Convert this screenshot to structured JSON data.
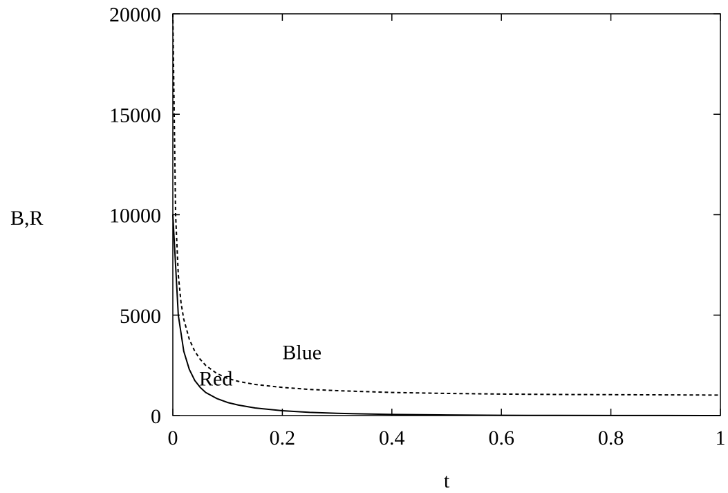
{
  "chart_data": {
    "type": "line",
    "title": "",
    "xlabel": "t",
    "ylabel": "B,R",
    "xlim": [
      0,
      1
    ],
    "ylim": [
      0,
      20000
    ],
    "xticks": [
      "0",
      "0.2",
      "0.4",
      "0.6",
      "0.8",
      "1"
    ],
    "yticks": [
      "0",
      "5000",
      "10000",
      "15000",
      "20000"
    ],
    "grid": false,
    "legend": "none",
    "series": [
      {
        "name": "Blue",
        "style": "dashed",
        "color": "#000000",
        "x": [
          0,
          0.005,
          0.01,
          0.015,
          0.02,
          0.03,
          0.04,
          0.05,
          0.06,
          0.08,
          0.1,
          0.12,
          0.15,
          0.2,
          0.25,
          0.3,
          0.4,
          0.5,
          0.6,
          0.7,
          0.8,
          0.9,
          1.0
        ],
        "values": [
          20000,
          10000,
          7000,
          5600,
          4800,
          3800,
          3200,
          2800,
          2500,
          2100,
          1850,
          1700,
          1550,
          1400,
          1300,
          1240,
          1150,
          1100,
          1070,
          1050,
          1040,
          1030,
          1020
        ]
      },
      {
        "name": "Red",
        "style": "solid",
        "color": "#000000",
        "x": [
          0,
          0.01,
          0.02,
          0.03,
          0.04,
          0.05,
          0.06,
          0.08,
          0.1,
          0.12,
          0.15,
          0.2,
          0.25,
          0.3,
          0.4,
          0.5,
          0.6,
          0.7,
          0.8,
          0.9,
          1.0
        ],
        "values": [
          10000,
          5000,
          3200,
          2300,
          1750,
          1400,
          1150,
          850,
          650,
          520,
          380,
          240,
          160,
          110,
          55,
          30,
          15,
          8,
          4,
          2,
          0
        ]
      }
    ],
    "annotations": [
      {
        "text": "Blue",
        "x": 0.2,
        "y": 2800
      },
      {
        "text": "Red",
        "x": 0.048,
        "y": 1500
      }
    ]
  }
}
